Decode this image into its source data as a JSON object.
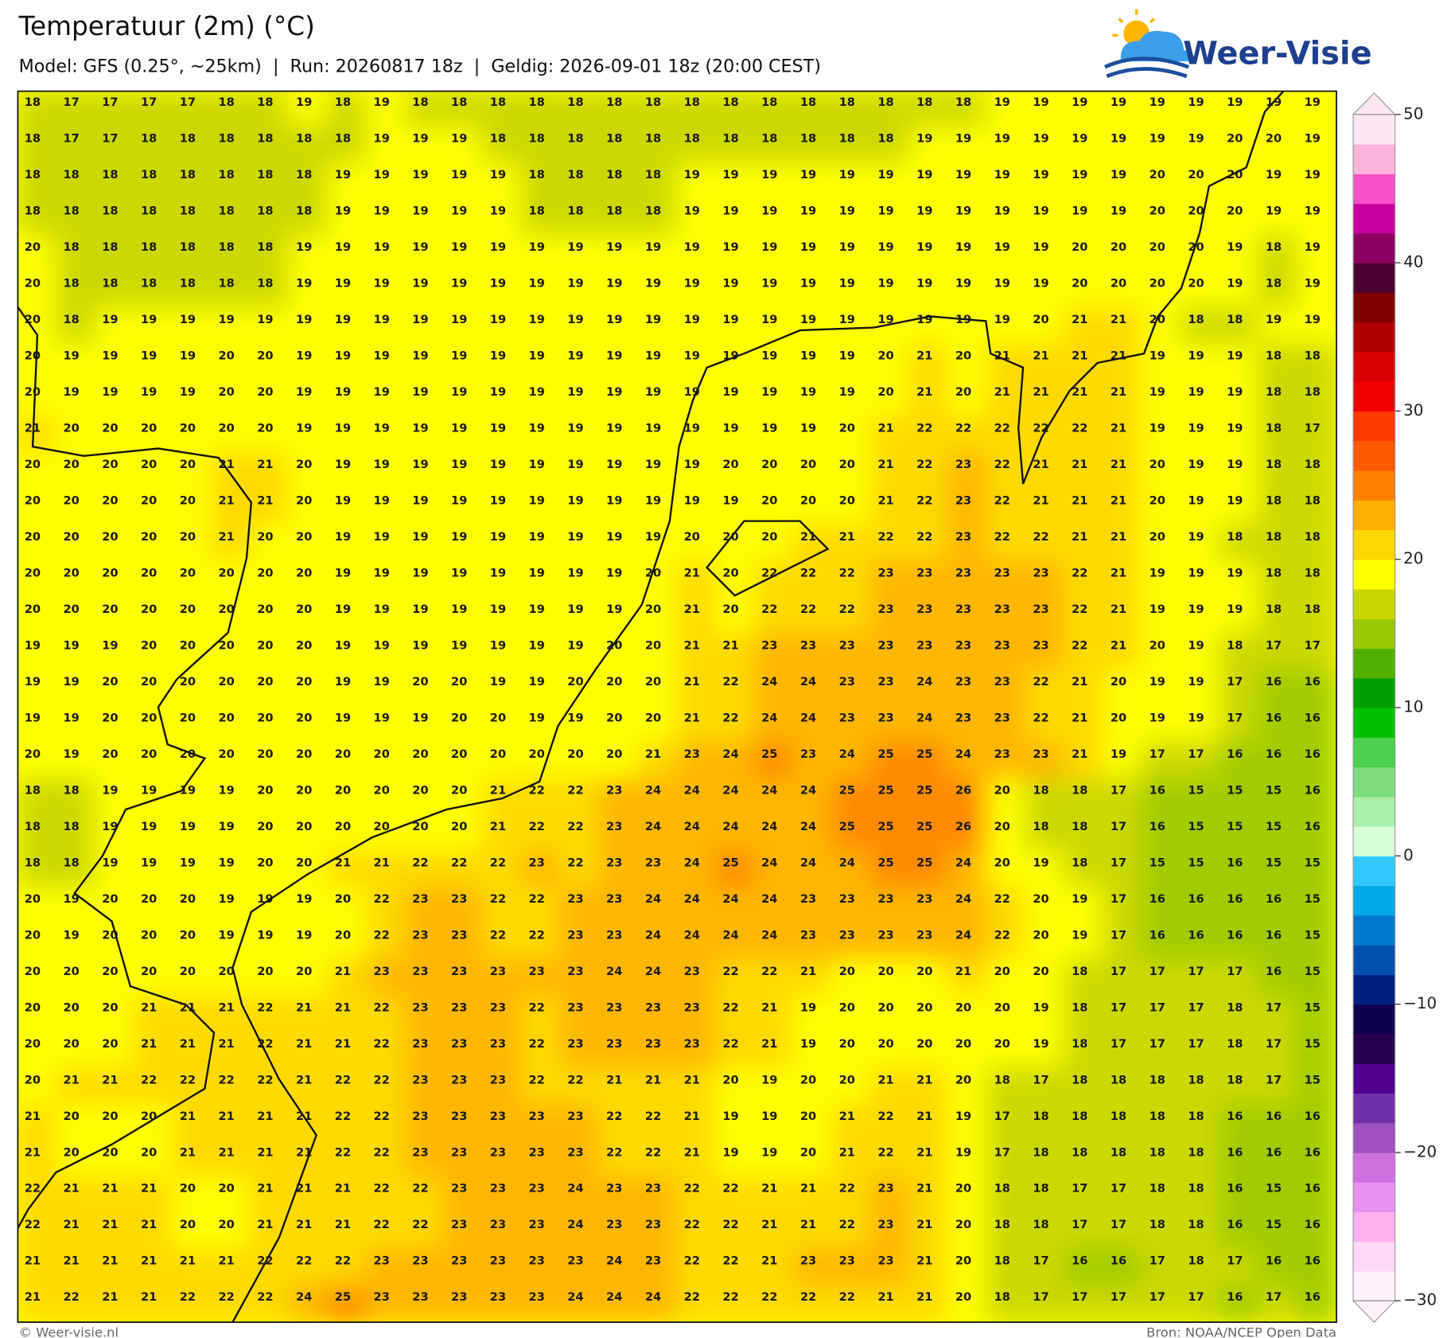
{
  "header": {
    "title": "Temperatuur (2m) (°C)",
    "subtitle": "Model: GFS (0.25°, ~25km)  |  Run: 20260817 18z  |  Geldig: 2026-09-01 18z (20:00 CEST)",
    "logo": "Weer-Visie"
  },
  "footer": {
    "left": "© Weer-visie.nl",
    "right": "Bron: NOAA/NCEP Open Data"
  },
  "colorbar": {
    "range": [
      -30,
      50
    ],
    "ticks": [
      {
        "value": -30,
        "label": "−30"
      },
      {
        "value": -20,
        "label": "−20"
      },
      {
        "value": -10,
        "label": "−10"
      },
      0,
      10,
      20,
      30,
      40,
      50
    ],
    "colors": [
      "#fff0fc",
      "#ffd8f8",
      "#ffb0f0",
      "#e890f0",
      "#d070e0",
      "#a050c0",
      "#7030a8",
      "#500090",
      "#280050",
      "#100050",
      "#002080",
      "#0050b0",
      "#0078d0",
      "#00a8e8",
      "#30c8ff",
      "#d8ffd8",
      "#aaeeaa",
      "#7ddc7d",
      "#4ccf4c",
      "#00c000",
      "#00a000",
      "#50b000",
      "#98c800",
      "#c8d600",
      "#ffff00",
      "#ffd700",
      "#ffb000",
      "#ff8000",
      "#ff5a00",
      "#ff3a00",
      "#f50000",
      "#d80000",
      "#b00000",
      "#800000",
      "#4a0030",
      "#8b0060",
      "#c800a0",
      "#f850c8",
      "#fbb4dc",
      "#fde6f4"
    ]
  },
  "map": {
    "values": [
      [
        18,
        17,
        17,
        17,
        17,
        18,
        18,
        19,
        18,
        19,
        18,
        18,
        18,
        18,
        18,
        18,
        18,
        18,
        18,
        18,
        18,
        18,
        18,
        18,
        18,
        19,
        19,
        19,
        19,
        19,
        19,
        19,
        19,
        19
      ],
      [
        18,
        17,
        17,
        18,
        18,
        18,
        18,
        18,
        18,
        19,
        19,
        19,
        18,
        18,
        18,
        18,
        18,
        18,
        18,
        18,
        18,
        18,
        18,
        19,
        19,
        19,
        19,
        19,
        19,
        19,
        19,
        20,
        20,
        19
      ],
      [
        18,
        18,
        18,
        18,
        18,
        18,
        18,
        18,
        19,
        19,
        19,
        19,
        19,
        18,
        18,
        18,
        18,
        19,
        19,
        19,
        19,
        19,
        19,
        19,
        19,
        19,
        19,
        19,
        19,
        20,
        20,
        20,
        19,
        19
      ],
      [
        18,
        18,
        18,
        18,
        18,
        18,
        18,
        18,
        19,
        19,
        19,
        19,
        19,
        18,
        18,
        18,
        18,
        19,
        19,
        19,
        19,
        19,
        19,
        19,
        19,
        19,
        19,
        19,
        19,
        20,
        20,
        20,
        19,
        19
      ],
      [
        20,
        18,
        18,
        18,
        18,
        18,
        18,
        19,
        19,
        19,
        19,
        19,
        19,
        19,
        19,
        19,
        19,
        19,
        19,
        19,
        19,
        19,
        19,
        19,
        19,
        19,
        19,
        20,
        20,
        20,
        20,
        19,
        18,
        19
      ],
      [
        20,
        18,
        18,
        18,
        18,
        18,
        18,
        19,
        19,
        19,
        19,
        19,
        19,
        19,
        19,
        19,
        19,
        19,
        19,
        19,
        19,
        19,
        19,
        19,
        19,
        19,
        19,
        20,
        20,
        20,
        20,
        19,
        18,
        19
      ],
      [
        20,
        18,
        19,
        19,
        19,
        19,
        19,
        19,
        19,
        19,
        19,
        19,
        19,
        19,
        19,
        19,
        19,
        19,
        19,
        19,
        19,
        19,
        19,
        19,
        19,
        19,
        20,
        21,
        21,
        20,
        18,
        18,
        19,
        19
      ],
      [
        20,
        19,
        19,
        19,
        19,
        20,
        20,
        19,
        19,
        19,
        19,
        19,
        19,
        19,
        19,
        19,
        19,
        19,
        19,
        19,
        19,
        19,
        20,
        21,
        20,
        21,
        21,
        21,
        21,
        19,
        19,
        19,
        18,
        18
      ],
      [
        20,
        19,
        19,
        19,
        19,
        20,
        20,
        19,
        19,
        19,
        19,
        19,
        19,
        19,
        19,
        19,
        19,
        19,
        19,
        19,
        19,
        19,
        20,
        21,
        20,
        21,
        21,
        21,
        21,
        19,
        19,
        19,
        18,
        18
      ],
      [
        21,
        20,
        20,
        20,
        20,
        20,
        20,
        19,
        19,
        19,
        19,
        19,
        19,
        19,
        19,
        19,
        19,
        19,
        19,
        19,
        19,
        20,
        21,
        22,
        22,
        22,
        22,
        22,
        21,
        19,
        19,
        19,
        18,
        17
      ],
      [
        20,
        20,
        20,
        20,
        20,
        21,
        21,
        20,
        19,
        19,
        19,
        19,
        19,
        19,
        19,
        19,
        19,
        19,
        20,
        20,
        20,
        20,
        21,
        22,
        23,
        22,
        21,
        21,
        21,
        20,
        19,
        19,
        18,
        18
      ],
      [
        20,
        20,
        20,
        20,
        20,
        21,
        21,
        20,
        19,
        19,
        19,
        19,
        19,
        19,
        19,
        19,
        19,
        19,
        19,
        20,
        20,
        20,
        21,
        22,
        23,
        22,
        21,
        21,
        21,
        20,
        19,
        19,
        18,
        18
      ],
      [
        20,
        20,
        20,
        20,
        20,
        21,
        20,
        20,
        19,
        19,
        19,
        19,
        19,
        19,
        19,
        19,
        19,
        20,
        20,
        20,
        21,
        21,
        22,
        22,
        23,
        22,
        22,
        21,
        21,
        20,
        19,
        18,
        18,
        18
      ],
      [
        20,
        20,
        20,
        20,
        20,
        20,
        20,
        20,
        19,
        19,
        19,
        19,
        19,
        19,
        19,
        19,
        20,
        21,
        20,
        22,
        22,
        22,
        23,
        23,
        23,
        23,
        23,
        22,
        21,
        19,
        19,
        19,
        18,
        18
      ],
      [
        20,
        20,
        20,
        20,
        20,
        20,
        20,
        20,
        19,
        19,
        19,
        19,
        19,
        19,
        19,
        19,
        20,
        21,
        20,
        22,
        22,
        22,
        23,
        23,
        23,
        23,
        23,
        22,
        21,
        19,
        19,
        19,
        18,
        18
      ],
      [
        19,
        19,
        19,
        20,
        20,
        20,
        20,
        20,
        19,
        19,
        19,
        19,
        19,
        19,
        19,
        20,
        20,
        21,
        21,
        23,
        23,
        23,
        23,
        23,
        23,
        23,
        23,
        22,
        21,
        20,
        19,
        18,
        17,
        17
      ],
      [
        19,
        19,
        20,
        20,
        20,
        20,
        20,
        20,
        19,
        19,
        20,
        20,
        19,
        19,
        20,
        20,
        20,
        21,
        22,
        24,
        24,
        23,
        23,
        24,
        23,
        23,
        22,
        21,
        20,
        19,
        19,
        17,
        16,
        16
      ],
      [
        19,
        19,
        20,
        20,
        20,
        20,
        20,
        20,
        19,
        19,
        19,
        20,
        20,
        19,
        19,
        20,
        20,
        21,
        22,
        24,
        24,
        23,
        23,
        24,
        23,
        23,
        22,
        21,
        20,
        19,
        19,
        17,
        16,
        16
      ],
      [
        20,
        19,
        20,
        20,
        20,
        20,
        20,
        20,
        20,
        20,
        20,
        20,
        20,
        20,
        20,
        20,
        21,
        23,
        24,
        25,
        23,
        24,
        25,
        25,
        24,
        23,
        23,
        21,
        19,
        17,
        17,
        16,
        16,
        16
      ],
      [
        18,
        18,
        19,
        19,
        19,
        19,
        20,
        20,
        20,
        20,
        20,
        20,
        21,
        22,
        22,
        23,
        24,
        24,
        24,
        24,
        24,
        25,
        25,
        25,
        26,
        20,
        18,
        18,
        17,
        16,
        15,
        15,
        15,
        16
      ],
      [
        18,
        18,
        19,
        19,
        19,
        19,
        20,
        20,
        20,
        20,
        20,
        20,
        21,
        22,
        22,
        23,
        24,
        24,
        24,
        24,
        24,
        25,
        25,
        25,
        26,
        20,
        18,
        18,
        17,
        16,
        15,
        15,
        15,
        16
      ],
      [
        18,
        18,
        19,
        19,
        19,
        19,
        20,
        20,
        21,
        21,
        22,
        22,
        22,
        23,
        22,
        23,
        23,
        24,
        25,
        24,
        24,
        24,
        25,
        25,
        24,
        20,
        19,
        18,
        17,
        15,
        15,
        16,
        15,
        15
      ],
      [
        20,
        19,
        20,
        20,
        20,
        19,
        19,
        19,
        20,
        22,
        23,
        23,
        22,
        22,
        23,
        23,
        24,
        24,
        24,
        24,
        23,
        23,
        23,
        23,
        24,
        22,
        20,
        19,
        17,
        16,
        16,
        16,
        16,
        15
      ],
      [
        20,
        19,
        20,
        20,
        20,
        19,
        19,
        19,
        20,
        22,
        23,
        23,
        22,
        22,
        23,
        23,
        24,
        24,
        24,
        24,
        23,
        23,
        23,
        23,
        24,
        22,
        20,
        19,
        17,
        16,
        16,
        16,
        16,
        15
      ],
      [
        20,
        20,
        20,
        20,
        20,
        20,
        20,
        20,
        21,
        23,
        23,
        23,
        23,
        23,
        23,
        24,
        24,
        23,
        22,
        22,
        21,
        20,
        20,
        20,
        21,
        20,
        20,
        18,
        17,
        17,
        17,
        17,
        16,
        15
      ],
      [
        20,
        20,
        20,
        21,
        21,
        21,
        22,
        21,
        21,
        22,
        23,
        23,
        23,
        22,
        23,
        23,
        23,
        23,
        22,
        21,
        19,
        20,
        20,
        20,
        20,
        20,
        19,
        18,
        17,
        17,
        17,
        18,
        17,
        15
      ],
      [
        20,
        20,
        20,
        21,
        21,
        21,
        22,
        21,
        21,
        22,
        23,
        23,
        23,
        22,
        23,
        23,
        23,
        23,
        22,
        21,
        19,
        20,
        20,
        20,
        20,
        20,
        19,
        18,
        17,
        17,
        17,
        18,
        17,
        15
      ],
      [
        20,
        21,
        21,
        22,
        22,
        22,
        22,
        21,
        22,
        22,
        23,
        23,
        23,
        22,
        22,
        21,
        21,
        21,
        20,
        19,
        20,
        20,
        21,
        21,
        20,
        18,
        17,
        18,
        18,
        18,
        18,
        18,
        17,
        15
      ],
      [
        21,
        20,
        20,
        20,
        21,
        21,
        21,
        21,
        22,
        22,
        23,
        23,
        23,
        23,
        23,
        22,
        22,
        21,
        19,
        19,
        20,
        21,
        22,
        21,
        19,
        17,
        18,
        18,
        18,
        18,
        18,
        16,
        16,
        16
      ],
      [
        21,
        20,
        20,
        20,
        21,
        21,
        21,
        21,
        22,
        22,
        23,
        23,
        23,
        23,
        23,
        22,
        22,
        21,
        19,
        19,
        20,
        21,
        22,
        21,
        19,
        17,
        18,
        18,
        18,
        18,
        18,
        16,
        16,
        16
      ],
      [
        22,
        21,
        21,
        21,
        20,
        20,
        21,
        21,
        21,
        22,
        22,
        23,
        23,
        23,
        24,
        23,
        23,
        22,
        22,
        21,
        21,
        22,
        23,
        21,
        20,
        18,
        18,
        17,
        17,
        18,
        18,
        16,
        15,
        16
      ],
      [
        22,
        21,
        21,
        21,
        20,
        20,
        21,
        21,
        21,
        22,
        22,
        23,
        23,
        23,
        24,
        23,
        23,
        22,
        22,
        21,
        21,
        22,
        23,
        21,
        20,
        18,
        18,
        17,
        17,
        18,
        18,
        16,
        15,
        16
      ],
      [
        21,
        21,
        21,
        21,
        21,
        21,
        22,
        22,
        22,
        23,
        23,
        23,
        23,
        23,
        23,
        24,
        23,
        22,
        22,
        21,
        23,
        23,
        23,
        21,
        20,
        18,
        17,
        16,
        16,
        17,
        18,
        17,
        16,
        16
      ],
      [
        21,
        22,
        21,
        21,
        22,
        22,
        22,
        24,
        25,
        23,
        23,
        23,
        23,
        23,
        24,
        24,
        24,
        22,
        22,
        22,
        22,
        22,
        21,
        21,
        20,
        18,
        17,
        17,
        17,
        17,
        17,
        16,
        17,
        16
      ]
    ]
  }
}
